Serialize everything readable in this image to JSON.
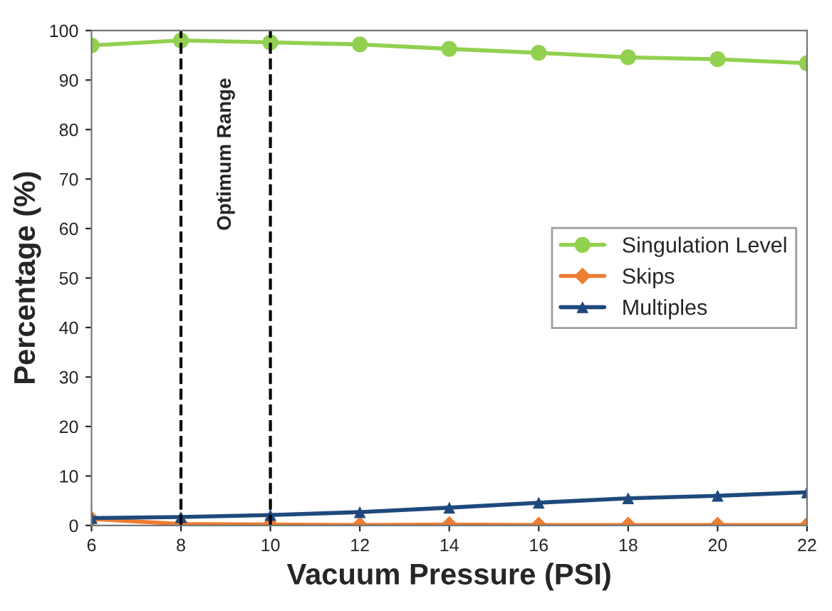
{
  "chart_data": {
    "type": "line",
    "xlabel": "Vacuum Pressure (PSI)",
    "ylabel": "Percentage (%)",
    "x": [
      6,
      8,
      10,
      12,
      14,
      16,
      18,
      20,
      22
    ],
    "series": [
      {
        "name": "Singulation Level",
        "color": "#92d050",
        "marker": "circle",
        "values": [
          97,
          98,
          97.6,
          97.2,
          96.3,
          95.5,
          94.6,
          94.2,
          93.4
        ]
      },
      {
        "name": "Skips",
        "color": "#ed7d31",
        "marker": "diamond",
        "values": [
          1.3,
          0.3,
          0.2,
          0.1,
          0.2,
          0.1,
          0.1,
          0.1,
          0.1
        ]
      },
      {
        "name": "Multiples",
        "color": "#1f497d",
        "marker": "triangle",
        "values": [
          1.5,
          1.7,
          2.1,
          2.7,
          3.6,
          4.6,
          5.5,
          6.0,
          6.7
        ]
      }
    ],
    "ref_lines": [
      {
        "axis": "x",
        "value": 8,
        "color": "#000000",
        "line_style": "dashed"
      },
      {
        "axis": "x",
        "value": 10,
        "color": "#000000",
        "line_style": "dashed"
      }
    ],
    "annotations": [
      "Optimum Range"
    ],
    "xlim": [
      6,
      22
    ],
    "xticks": [
      6,
      8,
      10,
      12,
      14,
      16,
      18,
      20,
      22
    ],
    "ylim": [
      0,
      100
    ],
    "yticks": [
      0,
      10,
      20,
      30,
      40,
      50,
      60,
      70,
      80,
      90,
      100
    ],
    "grid": false,
    "legend": "right",
    "line_style": "solid"
  }
}
